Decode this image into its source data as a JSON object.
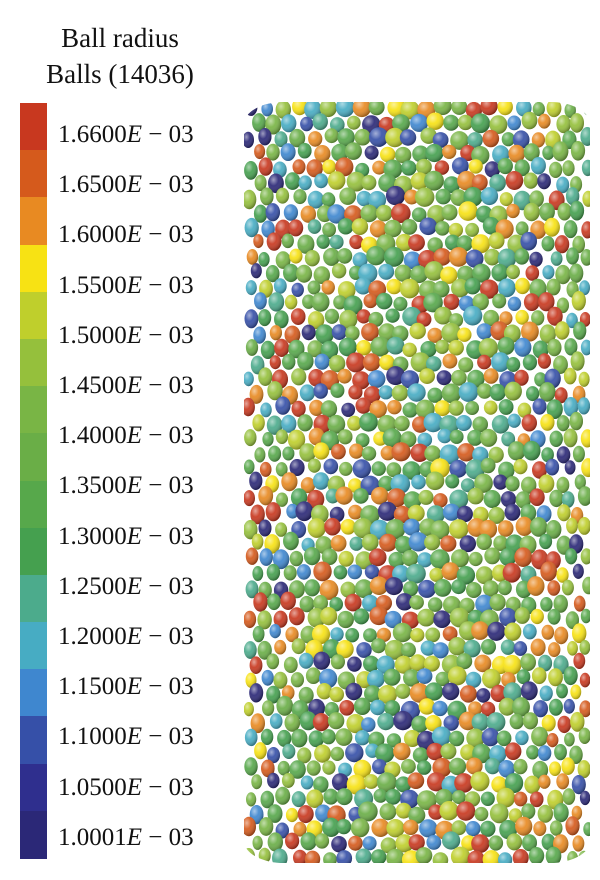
{
  "legend": {
    "title": "Ball radius",
    "subtitle": "Balls (14036)",
    "bands": [
      {
        "color": "#c8381f"
      },
      {
        "color": "#d55a1c"
      },
      {
        "color": "#e88a22"
      },
      {
        "color": "#f7e214"
      },
      {
        "color": "#bfcf2c"
      },
      {
        "color": "#95c03c"
      },
      {
        "color": "#79b545"
      },
      {
        "color": "#6aae47"
      },
      {
        "color": "#57a84b"
      },
      {
        "color": "#45a04f"
      },
      {
        "color": "#4cab8c"
      },
      {
        "color": "#47acc3"
      },
      {
        "color": "#3f87cf"
      },
      {
        "color": "#3650a8"
      },
      {
        "color": "#2f2f8e"
      },
      {
        "color": "#2b2877"
      }
    ],
    "labels": [
      {
        "mantissa": "1.6600",
        "exp": "E",
        "suffix": " − 03"
      },
      {
        "mantissa": "1.6500",
        "exp": "E",
        "suffix": " − 03"
      },
      {
        "mantissa": "1.6000",
        "exp": "E",
        "suffix": " − 03"
      },
      {
        "mantissa": "1.5500",
        "exp": "E",
        "suffix": " − 03"
      },
      {
        "mantissa": "1.5000",
        "exp": "E",
        "suffix": " − 03"
      },
      {
        "mantissa": "1.4500",
        "exp": "E",
        "suffix": " − 03"
      },
      {
        "mantissa": "1.4000",
        "exp": "E",
        "suffix": " − 03"
      },
      {
        "mantissa": "1.3500",
        "exp": "E",
        "suffix": " − 03"
      },
      {
        "mantissa": "1.3000",
        "exp": "E",
        "suffix": " − 03"
      },
      {
        "mantissa": "1.2500",
        "exp": "E",
        "suffix": " − 03"
      },
      {
        "mantissa": "1.2000",
        "exp": "E",
        "suffix": " − 03"
      },
      {
        "mantissa": "1.1500",
        "exp": "E",
        "suffix": " − 03"
      },
      {
        "mantissa": "1.1000",
        "exp": "E",
        "suffix": " − 03"
      },
      {
        "mantissa": "1.0500",
        "exp": "E",
        "suffix": " − 03"
      },
      {
        "mantissa": "1.0001",
        "exp": "E",
        "suffix": " − 03"
      }
    ]
  },
  "particle_palette": [
    "#c8381f",
    "#d55a1c",
    "#e88a22",
    "#f7e214",
    "#bfcf2c",
    "#95c03c",
    "#79b545",
    "#6aae47",
    "#57a84b",
    "#45a04f",
    "#4cab8c",
    "#47acc3",
    "#3f87cf",
    "#3650a8",
    "#2b2877"
  ]
}
